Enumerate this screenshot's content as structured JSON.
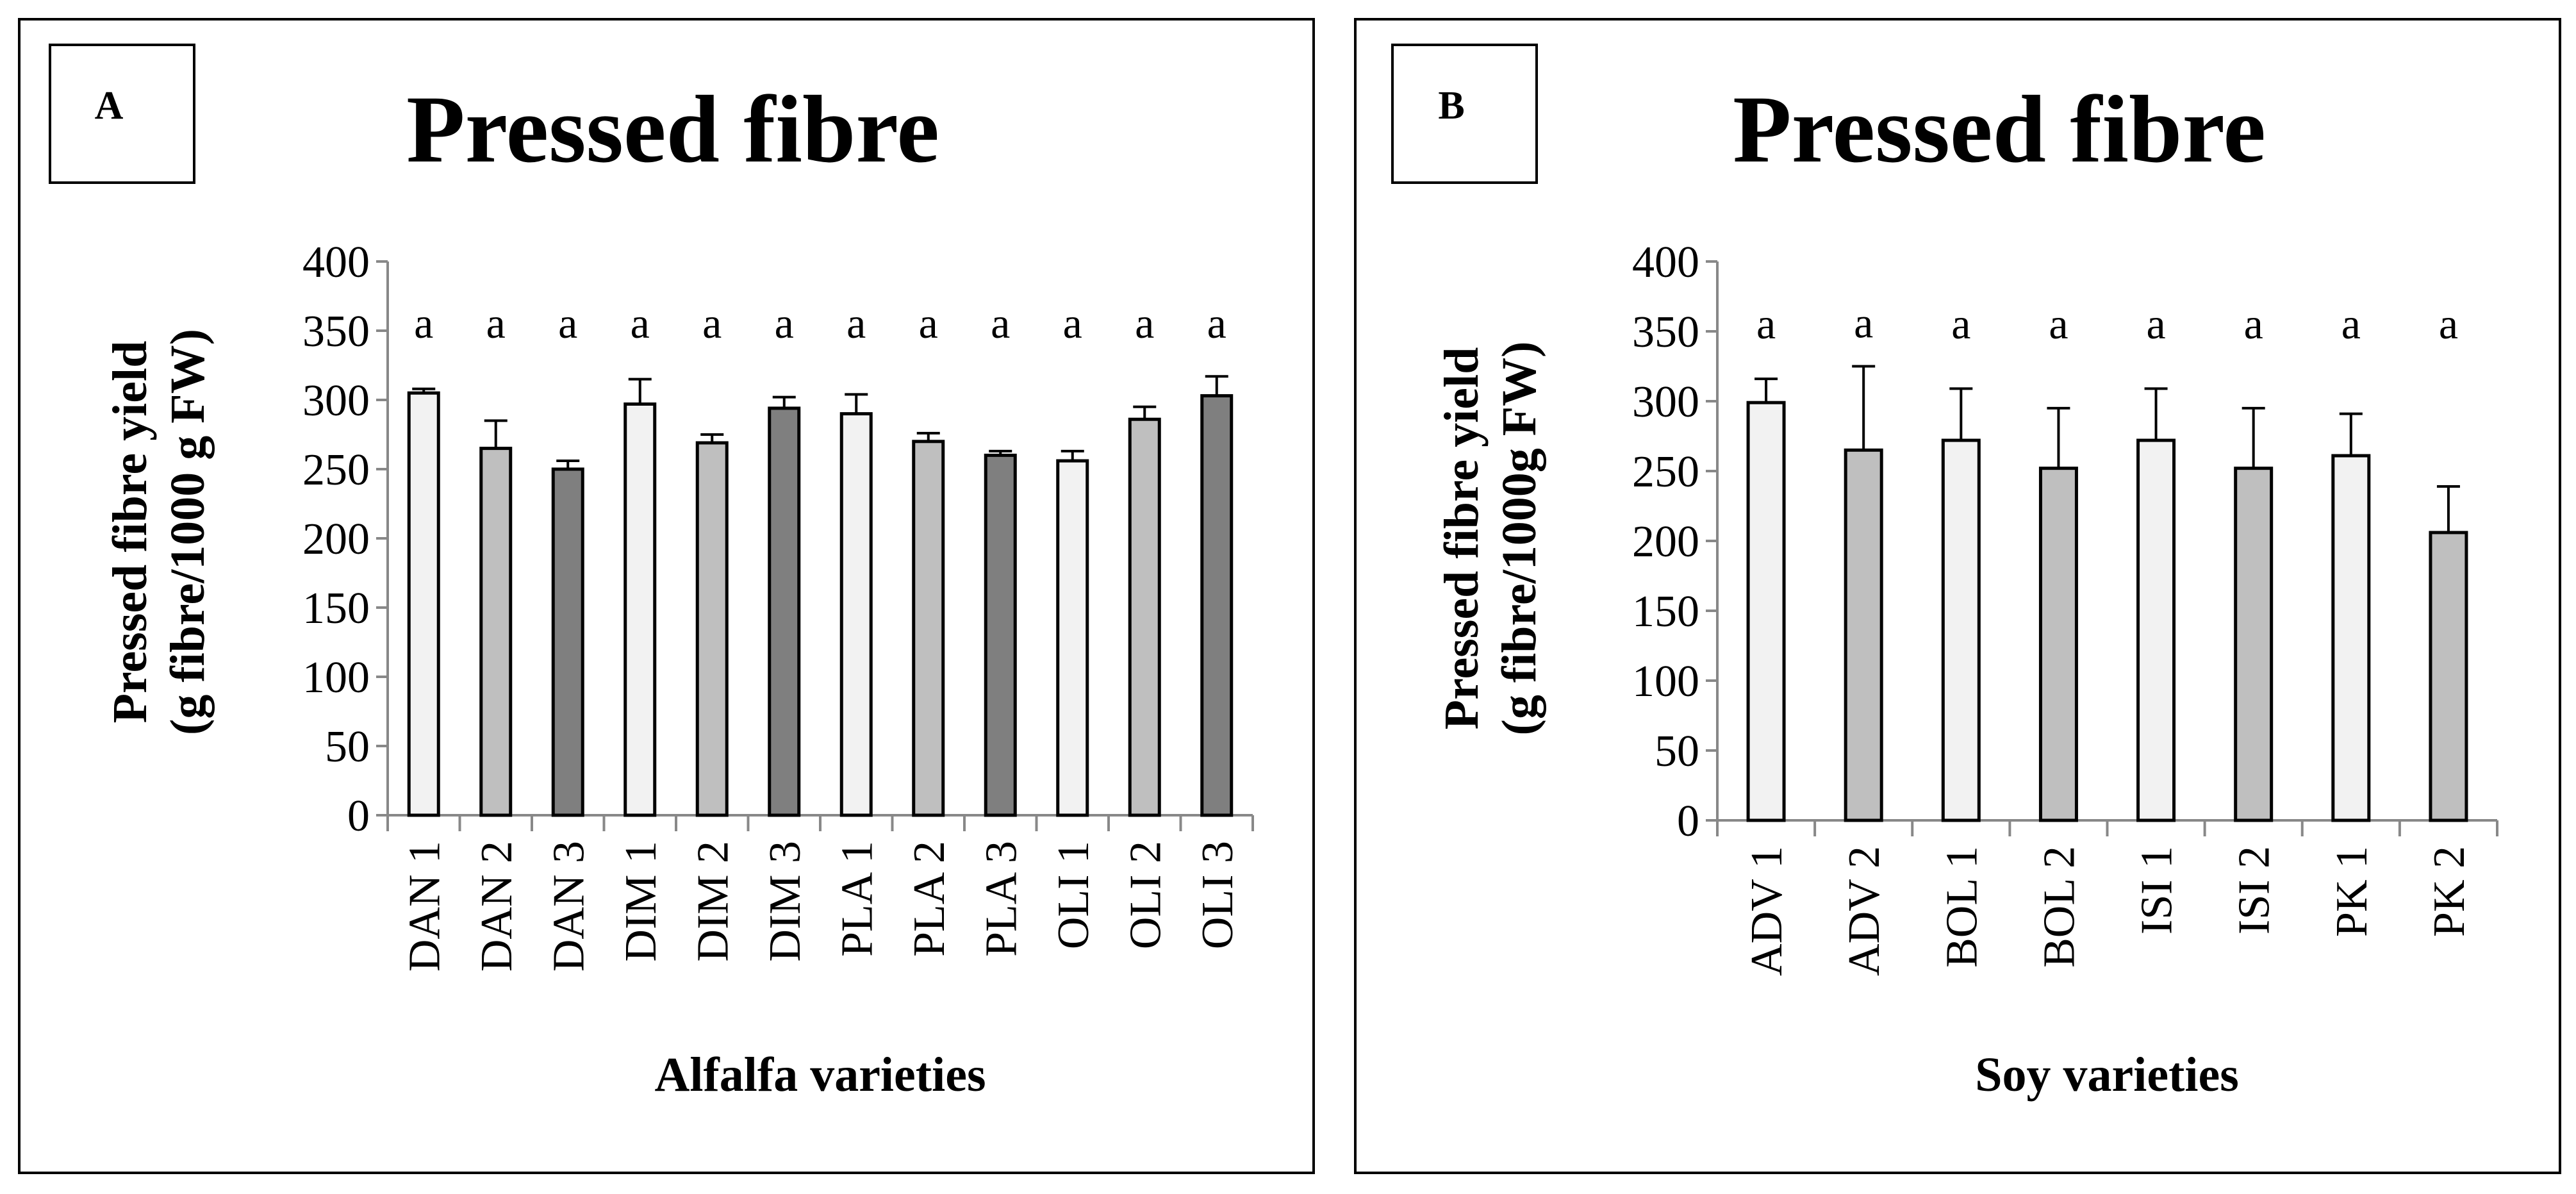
{
  "chart_data": [
    {
      "type": "bar",
      "panel_label": "A",
      "title": "Pressed fibre",
      "xlabel": "Alfalfa varieties",
      "ylabel_lines": [
        "Pressed fibre yield",
        "(g fibre/1000 g FW)"
      ],
      "ylim": [
        0,
        400
      ],
      "yticks": [
        0,
        50,
        100,
        150,
        200,
        250,
        300,
        350,
        400
      ],
      "categories": [
        "DAN 1",
        "DAN 2",
        "DAN 3",
        "DIM 1",
        "DIM 2",
        "DIM 3",
        "PLA 1",
        "PLA 2",
        "PLA 3",
        "OLI 1",
        "OLI 2",
        "OLI 3"
      ],
      "values": [
        305,
        265,
        250,
        297,
        269,
        294,
        290,
        270,
        260,
        256,
        286,
        303
      ],
      "errors": [
        3,
        20,
        6,
        18,
        6,
        8,
        14,
        6,
        3,
        7,
        9,
        14
      ],
      "significance": [
        "a",
        "a",
        "a",
        "a",
        "a",
        "a",
        "a",
        "a",
        "a",
        "a",
        "a",
        "a"
      ],
      "bar_colors": [
        "#f2f2f2",
        "#bfbfbf",
        "#7f7f7f",
        "#f2f2f2",
        "#bfbfbf",
        "#7f7f7f",
        "#f2f2f2",
        "#bfbfbf",
        "#7f7f7f",
        "#f2f2f2",
        "#bfbfbf",
        "#7f7f7f"
      ]
    },
    {
      "type": "bar",
      "panel_label": "B",
      "title": "Pressed fibre",
      "xlabel": "Soy varieties",
      "ylabel_lines": [
        "Pressed fibre yield",
        "(g fibre/1000g FW)"
      ],
      "ylim": [
        0,
        400
      ],
      "yticks": [
        0,
        50,
        100,
        150,
        200,
        250,
        300,
        350,
        400
      ],
      "categories": [
        "ADV 1",
        "ADV 2",
        "BOL 1",
        "BOL 2",
        "ISI 1",
        "ISI 2",
        "PK 1",
        "PK 2"
      ],
      "values": [
        299,
        265,
        272,
        252,
        272,
        252,
        261,
        206
      ],
      "errors": [
        17,
        60,
        37,
        43,
        37,
        43,
        30,
        33
      ],
      "significance": [
        "a",
        "a",
        "a",
        "a",
        "a",
        "a",
        "a",
        "a"
      ],
      "bar_colors": [
        "#f2f2f2",
        "#bfbfbf",
        "#f2f2f2",
        "#bfbfbf",
        "#f2f2f2",
        "#bfbfbf",
        "#f2f2f2",
        "#bfbfbf"
      ]
    }
  ]
}
